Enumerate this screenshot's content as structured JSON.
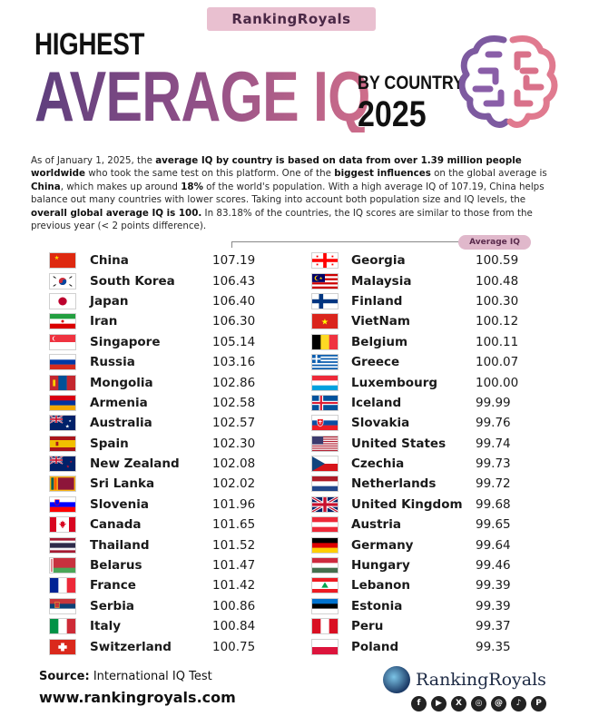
{
  "header": {
    "badge": "RankingRoyals",
    "line1": "HIGHEST",
    "line2": "AVERAGE IQ",
    "line3": "BY COUNTRY",
    "year": "2025"
  },
  "intro": {
    "p1": "As of January 1, 2025, the ",
    "b1": "average IQ by country is based on data from over 1.39 million people worldwide",
    "p2": " who took the same test on this platform. One of the ",
    "b2": "biggest influences",
    "p3": " on the global average is ",
    "b3": "China",
    "p4": ", which makes up around ",
    "b4": "18%",
    "p5": " of the world's population. With a high average IQ of 107.19, China helps balance out many countries with lower scores. Taking into account both population size and IQ levels, the ",
    "b5": "overall global average IQ is 100.",
    "p6": " In 83.18% of the countries, the IQ scores are similar to those from the previous year (< 2 points difference)."
  },
  "table_label": "Average IQ",
  "left_rows": [
    {
      "country": "China",
      "iq": "107.19",
      "flag": "cn"
    },
    {
      "country": "South Korea",
      "iq": "106.43",
      "flag": "kr"
    },
    {
      "country": "Japan",
      "iq": "106.40",
      "flag": "jp"
    },
    {
      "country": "Iran",
      "iq": "106.30",
      "flag": "ir"
    },
    {
      "country": "Singapore",
      "iq": "105.14",
      "flag": "sg"
    },
    {
      "country": "Russia",
      "iq": "103.16",
      "flag": "ru"
    },
    {
      "country": "Mongolia",
      "iq": "102.86",
      "flag": "mn"
    },
    {
      "country": "Armenia",
      "iq": "102.58",
      "flag": "am"
    },
    {
      "country": "Australia",
      "iq": "102.57",
      "flag": "au"
    },
    {
      "country": "Spain",
      "iq": "102.30",
      "flag": "es"
    },
    {
      "country": "New Zealand",
      "iq": "102.08",
      "flag": "nz"
    },
    {
      "country": "Sri Lanka",
      "iq": "102.02",
      "flag": "lk"
    },
    {
      "country": "Slovenia",
      "iq": "101.96",
      "flag": "si"
    },
    {
      "country": "Canada",
      "iq": "101.65",
      "flag": "ca"
    },
    {
      "country": "Thailand",
      "iq": "101.52",
      "flag": "th"
    },
    {
      "country": "Belarus",
      "iq": "101.47",
      "flag": "by"
    },
    {
      "country": "France",
      "iq": "101.42",
      "flag": "fr"
    },
    {
      "country": "Serbia",
      "iq": "100.86",
      "flag": "rs"
    },
    {
      "country": "Italy",
      "iq": "100.84",
      "flag": "it"
    },
    {
      "country": "Switzerland",
      "iq": "100.75",
      "flag": "ch"
    }
  ],
  "right_rows": [
    {
      "country": "Georgia",
      "iq": "100.59",
      "flag": "ge"
    },
    {
      "country": "Malaysia",
      "iq": "100.48",
      "flag": "my"
    },
    {
      "country": "Finland",
      "iq": "100.30",
      "flag": "fi"
    },
    {
      "country": "VietNam",
      "iq": "100.12",
      "flag": "vn"
    },
    {
      "country": "Belgium",
      "iq": "100.11",
      "flag": "be"
    },
    {
      "country": "Greece",
      "iq": "100.07",
      "flag": "gr"
    },
    {
      "country": "Luxembourg",
      "iq": "100.00",
      "flag": "lu"
    },
    {
      "country": "Iceland",
      "iq": "99.99",
      "flag": "is"
    },
    {
      "country": "Slovakia",
      "iq": "99.76",
      "flag": "sk"
    },
    {
      "country": "United States",
      "iq": "99.74",
      "flag": "us"
    },
    {
      "country": "Czechia",
      "iq": "99.73",
      "flag": "cz"
    },
    {
      "country": "Netherlands",
      "iq": "99.72",
      "flag": "nl"
    },
    {
      "country": "United Kingdom",
      "iq": "99.68",
      "flag": "gb"
    },
    {
      "country": "Austria",
      "iq": "99.65",
      "flag": "at"
    },
    {
      "country": "Germany",
      "iq": "99.64",
      "flag": "de"
    },
    {
      "country": "Hungary",
      "iq": "99.46",
      "flag": "hu"
    },
    {
      "country": "Lebanon",
      "iq": "99.39",
      "flag": "lb"
    },
    {
      "country": "Estonia",
      "iq": "99.39",
      "flag": "ee"
    },
    {
      "country": "Peru",
      "iq": "99.37",
      "flag": "pe"
    },
    {
      "country": "Poland",
      "iq": "99.35",
      "flag": "pl"
    }
  ],
  "footer": {
    "source_label": "Source:",
    "source_value": "International IQ Test",
    "url": "www.rankingroyals.com",
    "logo_text": "RankingRoyals",
    "socials": [
      "facebook-icon",
      "youtube-icon",
      "x-icon",
      "instagram-icon",
      "threads-icon",
      "tiktok-icon",
      "pinterest-icon"
    ]
  }
}
